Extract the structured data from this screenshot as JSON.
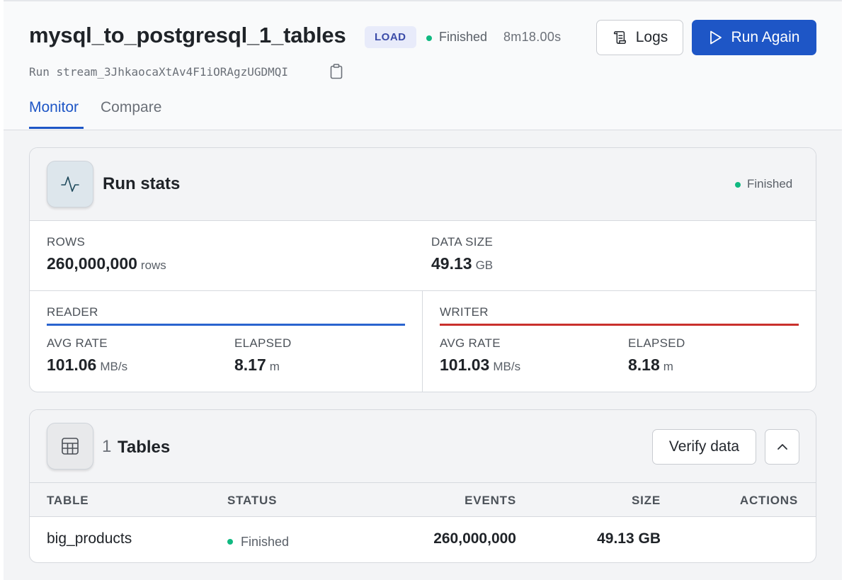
{
  "header": {
    "title": "mysql_to_postgresql_1_tables",
    "badge": "LOAD",
    "status": "Finished",
    "duration": "8m18.00s",
    "run_label": "Run",
    "run_id": "stream_3JhkaocaXtAv4F1iORAgzUGDMQI",
    "logs_label": "Logs",
    "run_again_label": "Run Again"
  },
  "tabs": [
    {
      "label": "Monitor",
      "active": true
    },
    {
      "label": "Compare",
      "active": false
    }
  ],
  "run_stats": {
    "title": "Run stats",
    "status": "Finished",
    "rows": {
      "label": "ROWS",
      "value": "260,000,000",
      "unit": "rows"
    },
    "data_size": {
      "label": "DATA SIZE",
      "value": "49.13",
      "unit": "GB"
    },
    "reader": {
      "label": "READER",
      "avg_rate": {
        "label": "AVG RATE",
        "value": "101.06",
        "unit": "MB/s"
      },
      "elapsed": {
        "label": "ELAPSED",
        "value": "8.17",
        "unit": "m"
      }
    },
    "writer": {
      "label": "WRITER",
      "avg_rate": {
        "label": "AVG RATE",
        "value": "101.03",
        "unit": "MB/s"
      },
      "elapsed": {
        "label": "ELAPSED",
        "value": "8.18",
        "unit": "m"
      }
    }
  },
  "tables": {
    "count": "1",
    "title": "Tables",
    "verify_label": "Verify data",
    "columns": [
      "TABLE",
      "STATUS",
      "EVENTS",
      "SIZE",
      "ACTIONS"
    ],
    "rows": [
      {
        "table": "big_products",
        "status": "Finished",
        "events": "260,000,000",
        "size": "49.13 GB"
      }
    ]
  },
  "colors": {
    "accent": "#1e56c6",
    "status_green": "#10b981",
    "reader_bar": "#2a64cf",
    "writer_bar": "#c9302c"
  },
  "icons": [
    "file-list-icon",
    "play-icon",
    "copy-icon",
    "activity-icon",
    "table-grid-icon",
    "chevron-up-icon",
    "status-dot-icon"
  ]
}
